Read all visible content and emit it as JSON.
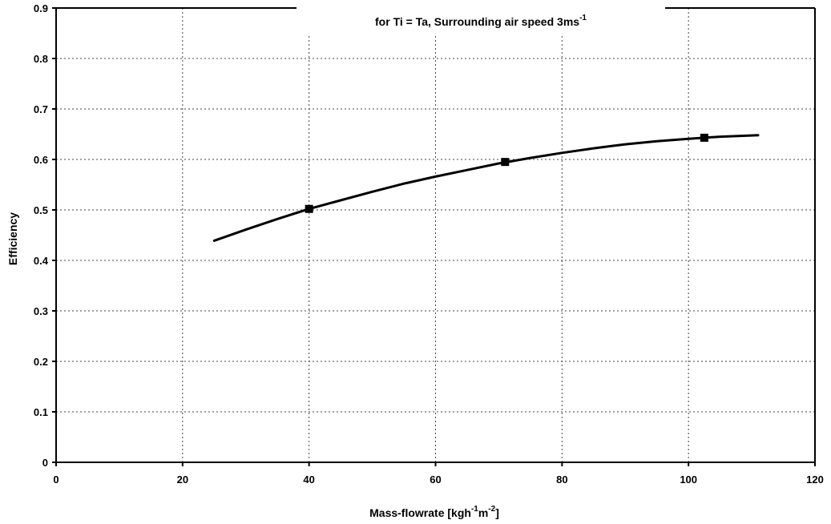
{
  "chart_data": {
    "type": "line",
    "title": "",
    "subtitle": "for Ti = Ta, Surrounding air speed 3ms",
    "subtitle_sup": "-1",
    "xlabel_parts": [
      "Mass-flowrate [kgh",
      "-1",
      "m",
      "-2",
      "]"
    ],
    "ylabel": "Efficiency",
    "xlim": [
      0,
      120
    ],
    "ylim": [
      0,
      0.9
    ],
    "x_ticks": [
      0,
      20,
      40,
      60,
      80,
      100,
      120
    ],
    "y_ticks": [
      0,
      0.1,
      0.2,
      0.3,
      0.4,
      0.5,
      0.6,
      0.7,
      0.8,
      0.9
    ],
    "grid": true,
    "series": [
      {
        "curve": {
          "x": [
            25,
            30,
            35,
            40,
            45,
            50,
            55,
            60,
            65,
            70,
            75,
            80,
            85,
            90,
            95,
            100,
            105,
            111
          ],
          "y": [
            0.439,
            0.461,
            0.482,
            0.502,
            0.519,
            0.536,
            0.552,
            0.566,
            0.579,
            0.592,
            0.603,
            0.613,
            0.622,
            0.63,
            0.636,
            0.641,
            0.645,
            0.648
          ]
        },
        "markers": {
          "x": [
            40,
            71,
            102.5
          ],
          "y": [
            0.502,
            0.595,
            0.643
          ]
        },
        "color": "#000000"
      }
    ]
  }
}
